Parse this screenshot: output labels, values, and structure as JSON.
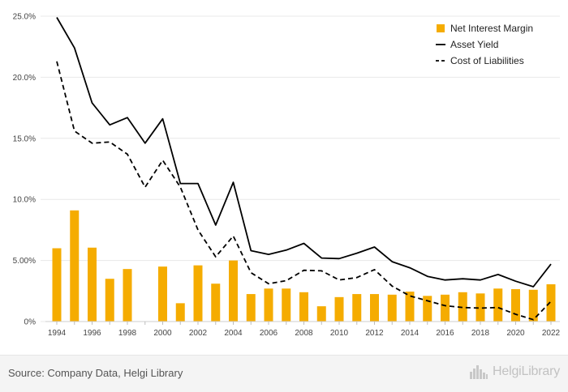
{
  "chart_data": {
    "type": "bar",
    "x": [
      "1994",
      "1995",
      "1996",
      "1997",
      "1998",
      "1999",
      "2000",
      "2001",
      "2002",
      "2003",
      "2004",
      "2005",
      "2006",
      "2007",
      "2008",
      "2009",
      "2010",
      "2011",
      "2012",
      "2013",
      "2014",
      "2015",
      "2016",
      "2017",
      "2018",
      "2019",
      "2020",
      "2021",
      "2022"
    ],
    "x_tick_labels": [
      "1994",
      "1996",
      "1998",
      "2000",
      "2002",
      "2004",
      "2006",
      "2008",
      "2010",
      "2012",
      "2014",
      "2016",
      "2018",
      "2020",
      "2022"
    ],
    "y_tick_labels": [
      "0%",
      "5.00%",
      "10.0%",
      "15.0%",
      "20.0%",
      "25.0%"
    ],
    "ylim": [
      0,
      25
    ],
    "grid": true,
    "legend_position": "top-right",
    "series": [
      {
        "name": "Net Interest Margin",
        "kind": "bar",
        "color": "#f5ac00",
        "values": [
          6.0,
          9.1,
          6.05,
          3.5,
          4.3,
          null,
          4.5,
          1.5,
          4.6,
          3.1,
          5.0,
          2.25,
          2.7,
          2.7,
          2.4,
          1.25,
          2.0,
          2.25,
          2.25,
          2.2,
          2.45,
          2.1,
          2.2,
          2.4,
          2.3,
          2.7,
          2.65,
          2.6,
          3.05
        ]
      },
      {
        "name": "Asset Yield",
        "kind": "line",
        "style": "solid",
        "color": "#000000",
        "values": [
          24.9,
          22.4,
          17.9,
          16.1,
          16.7,
          14.6,
          16.6,
          11.3,
          11.3,
          7.9,
          11.4,
          5.8,
          5.5,
          5.85,
          6.4,
          5.2,
          5.15,
          5.6,
          6.1,
          4.9,
          4.4,
          3.7,
          3.4,
          3.5,
          3.4,
          3.85,
          3.3,
          2.85,
          4.7
        ]
      },
      {
        "name": "Cost of Liabilities",
        "kind": "line",
        "style": "dashed",
        "color": "#000000",
        "values": [
          21.3,
          15.6,
          14.6,
          14.7,
          13.7,
          11.0,
          13.2,
          11.0,
          7.5,
          5.3,
          7.0,
          4.0,
          3.1,
          3.35,
          4.2,
          4.15,
          3.4,
          3.6,
          4.25,
          2.9,
          2.1,
          1.7,
          1.3,
          1.15,
          1.1,
          1.15,
          0.6,
          0.15,
          1.65
        ]
      }
    ]
  },
  "footer": {
    "source_text": "Source: Company Data, Helgi Library",
    "logo_text": "HelgiLibrary",
    "logo_icon": "city-skyline-icon"
  }
}
